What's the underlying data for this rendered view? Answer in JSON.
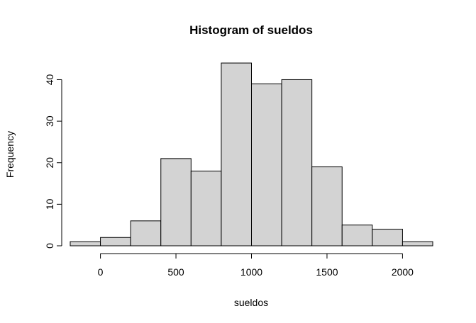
{
  "chart_data": {
    "type": "bar",
    "title": "Histogram of sueldos",
    "xlabel": "sueldos",
    "ylabel": "Frequency",
    "bin_edges": [
      -200,
      0,
      200,
      400,
      600,
      800,
      1000,
      1200,
      1400,
      1600,
      1800,
      2000,
      2200
    ],
    "values": [
      1,
      2,
      6,
      21,
      18,
      44,
      39,
      40,
      19,
      5,
      4,
      1
    ],
    "x_ticks": [
      0,
      500,
      1000,
      1500,
      2000
    ],
    "y_ticks": [
      0,
      10,
      20,
      30,
      40
    ],
    "xlim": [
      -200,
      2200
    ],
    "ylim": [
      0,
      44
    ],
    "bar_color": "#d3d3d3",
    "grid": false,
    "legend": "none"
  }
}
